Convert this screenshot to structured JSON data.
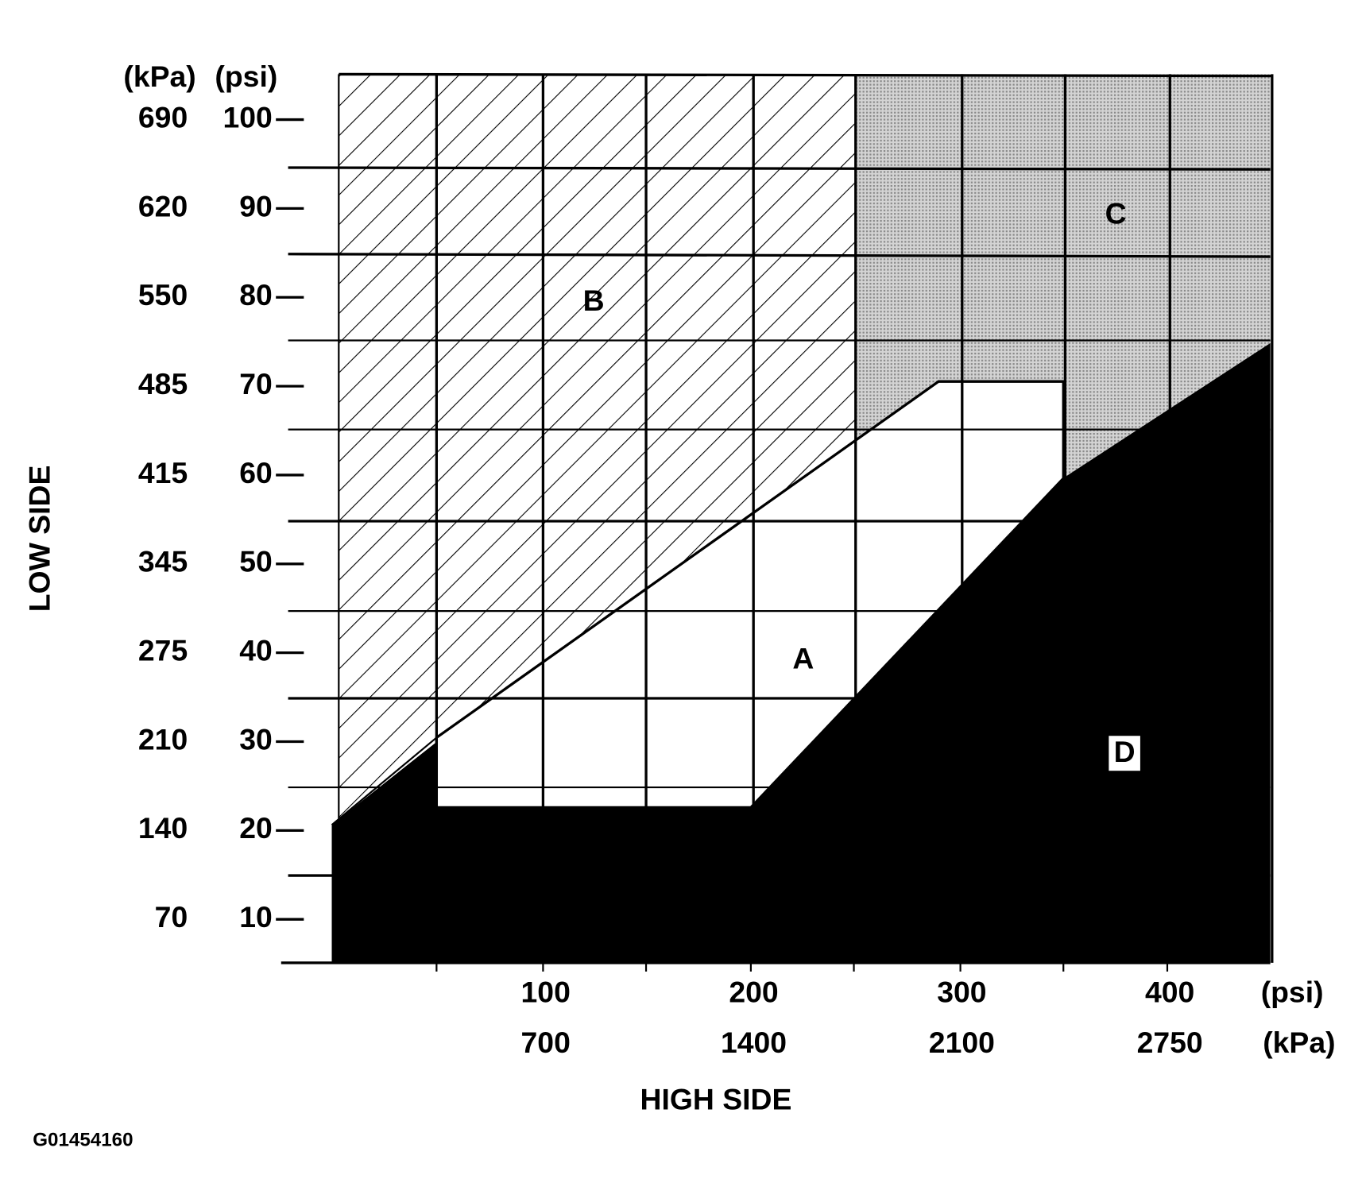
{
  "y_axis": {
    "title": "LOW SIDE",
    "units": [
      "(kPa)",
      "(psi)"
    ],
    "ticks": [
      {
        "kpa": 690,
        "psi": 100
      },
      {
        "kpa": 620,
        "psi": 90
      },
      {
        "kpa": 550,
        "psi": 80
      },
      {
        "kpa": 485,
        "psi": 70
      },
      {
        "kpa": 415,
        "psi": 60
      },
      {
        "kpa": 345,
        "psi": 50
      },
      {
        "kpa": 275,
        "psi": 40
      },
      {
        "kpa": 210,
        "psi": 30
      },
      {
        "kpa": 140,
        "psi": 20
      },
      {
        "kpa": 70,
        "psi": 10
      }
    ]
  },
  "x_axis": {
    "title": "HIGH SIDE",
    "units": [
      "(psi)",
      "(kPa)"
    ],
    "ticks": [
      {
        "psi": 100,
        "kpa": 700
      },
      {
        "psi": 200,
        "kpa": 1400
      },
      {
        "psi": 300,
        "kpa": 2100
      },
      {
        "psi": 400,
        "kpa": 2750
      }
    ]
  },
  "regions": {
    "a": "A",
    "b": "B",
    "c": "C",
    "d": "D"
  },
  "figure_id": "G01454160"
}
